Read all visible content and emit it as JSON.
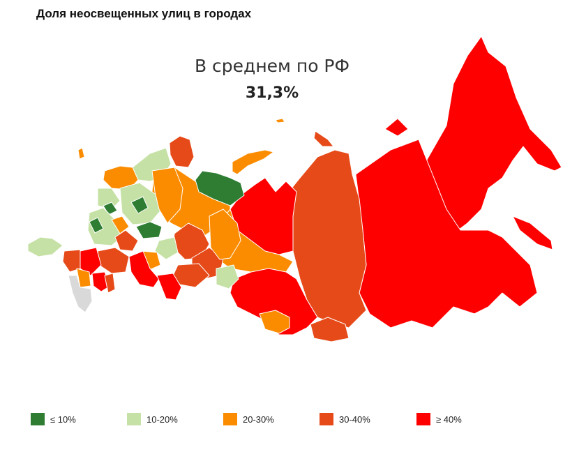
{
  "title": "Доля неосвещенных улиц в городах",
  "average": {
    "label": "В среднем по РФ",
    "value": "31,3%"
  },
  "colors": {
    "le10": "#2e7d32",
    "10_20": "#c5e1a5",
    "20_30": "#fb8c00",
    "30_40": "#e64a19",
    "ge40": "#ff0000",
    "nodata": "#d9d9d9"
  },
  "legend": [
    {
      "label": "≤ 10%",
      "color": "#2e7d32"
    },
    {
      "label": "10-20%",
      "color": "#c5e1a5"
    },
    {
      "label": "20-30%",
      "color": "#fb8c00"
    },
    {
      "label": "30-40%",
      "color": "#e64a19"
    },
    {
      "label": "≥ 40%",
      "color": "#ff0000"
    }
  ]
}
